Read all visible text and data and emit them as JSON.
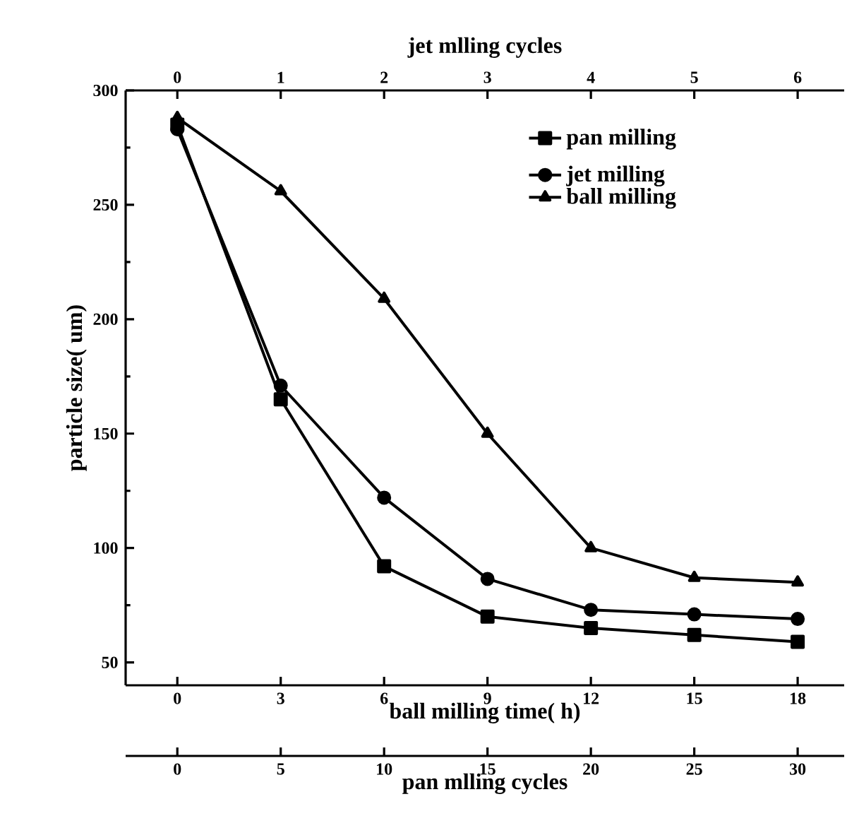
{
  "chart_data": [
    {
      "type": "line",
      "xlabel": "ball milling time(  h)",
      "x2label": "jet mlling cycles",
      "ylabel": "particle size(  um)",
      "xlim": [
        -1.5,
        19.35
      ],
      "xticks": [
        0,
        3,
        6,
        9,
        12,
        15,
        18
      ],
      "x2lim": [
        -0.5,
        6.45
      ],
      "x2ticks": [
        0,
        1,
        2,
        3,
        4,
        5,
        6
      ],
      "ylim": [
        40,
        300
      ],
      "yticks": [
        50,
        100,
        150,
        200,
        250,
        300
      ],
      "legend": "top right",
      "series": [
        {
          "name": "jet milling",
          "color": "#000000",
          "marker": "circle",
          "axis": "x2",
          "x": [
            0,
            1,
            2,
            3,
            4,
            5,
            6
          ],
          "values": [
            283,
            171,
            122,
            86.5,
            73,
            71,
            69
          ]
        },
        {
          "name": "ball milling",
          "color": "#000000",
          "marker": "triangle",
          "x": [
            0,
            3,
            6,
            9,
            12,
            15,
            18
          ],
          "values": [
            288,
            256,
            209,
            150,
            100,
            87,
            85
          ]
        }
      ]
    },
    {
      "type": "line",
      "xlabel": "pan mlling cycles",
      "xlim": [
        -2.5,
        32.25
      ],
      "xticks": [
        0,
        5,
        10,
        15,
        20,
        25,
        30
      ],
      "ylim": [
        40,
        300
      ],
      "tick_labels": "x",
      "legend": "top right",
      "series": [
        {
          "name": "pan milling",
          "color": "#000000",
          "marker": "square",
          "x": [
            0,
            5,
            10,
            15,
            20,
            25,
            30
          ],
          "values": [
            285,
            165,
            92,
            70,
            65,
            62,
            59
          ]
        }
      ]
    }
  ]
}
